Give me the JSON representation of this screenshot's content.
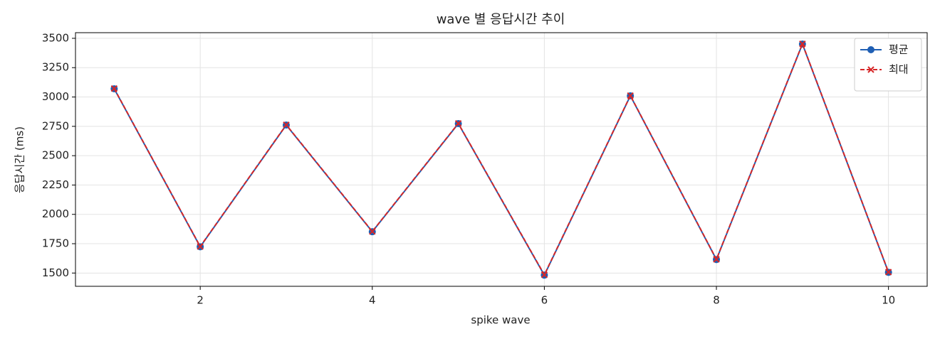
{
  "chart_data": {
    "type": "line",
    "title": "wave 별 응답시간 추이",
    "x_label": "spike wave",
    "y_label": "응답시간 (ms)",
    "x": [
      1,
      2,
      3,
      4,
      5,
      6,
      7,
      8,
      9,
      10
    ],
    "series": [
      {
        "name": "평균",
        "color": "#1f5fb4",
        "marker": "o",
        "dash": false,
        "values": [
          3070,
          1724,
          2761,
          1852,
          2773,
          1482,
          3010,
          1615,
          3451,
          1506
        ]
      },
      {
        "name": "최대",
        "color": "#d62728",
        "marker": "x",
        "dash": true,
        "values": [
          3072,
          1726,
          2763,
          1854,
          2775,
          1485,
          3012,
          1617,
          3453,
          1508
        ]
      }
    ],
    "xlim": [
      0.55,
      10.45
    ],
    "xticks": [
      2,
      4,
      6,
      8,
      10
    ],
    "ylim": [
      1387,
      3548
    ],
    "yticks": [
      1500,
      1750,
      2000,
      2250,
      2500,
      2750,
      3000,
      3250,
      3500
    ],
    "grid": true,
    "legend": "upper right"
  }
}
